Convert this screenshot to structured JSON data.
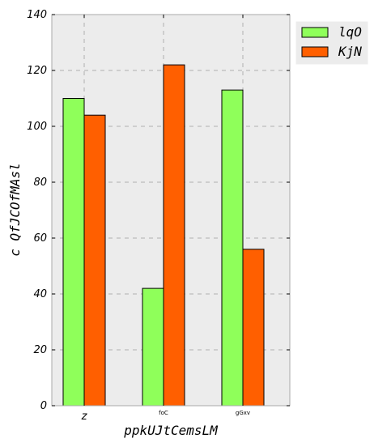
{
  "chart_data": {
    "type": "bar",
    "title": "",
    "xlabel": "ppkUJtCemsLM",
    "ylabel": "c  QfJCOfMAsl",
    "categories": [
      "z",
      "foC",
      "gGxv"
    ],
    "series": [
      {
        "name": "lqO",
        "values": [
          110,
          42,
          113
        ],
        "color": "#8fff5a"
      },
      {
        "name": "KjN",
        "values": [
          104,
          122,
          56
        ],
        "color": "#ff5f00"
      }
    ],
    "ylim": [
      0,
      140
    ],
    "yticks": [
      0,
      20,
      40,
      60,
      80,
      100,
      120,
      140
    ],
    "grid": true,
    "legend_position": "outside-top-right",
    "background_color": "#ececec"
  }
}
